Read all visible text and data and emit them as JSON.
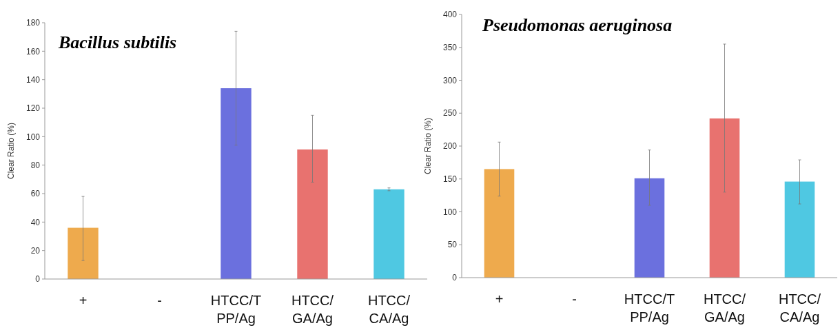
{
  "chart_data": [
    {
      "type": "bar",
      "title": "Bacillus subtilis",
      "ylabel": "Clear Ratio (%)",
      "categories": [
        "+",
        "-",
        "HTCC/T\nPP/Ag",
        "HTCC/\nGA/Ag",
        "HTCC/\nCA/Ag"
      ],
      "values": [
        36,
        null,
        134,
        91,
        63
      ],
      "colors": [
        "#eeaa4d",
        null,
        "#6b70de",
        "#e8726f",
        "#4fc8e2"
      ],
      "errors": [
        [
          13,
          58
        ],
        null,
        [
          94,
          174
        ],
        [
          68,
          115
        ],
        [
          62,
          64
        ]
      ],
      "ylim": [
        0,
        180
      ],
      "yticks": [
        0,
        20,
        40,
        60,
        80,
        100,
        120,
        140,
        160,
        180
      ],
      "grid": false
    },
    {
      "type": "bar",
      "title": "Pseudomonas aeruginosa",
      "ylabel": "Clear Ratio (%)",
      "categories": [
        "+",
        "-",
        "HTCC/T\nPP/Ag",
        "HTCC/\nGA/Ag",
        "HTCC/\nCA/Ag"
      ],
      "values": [
        165,
        null,
        151,
        242,
        146
      ],
      "colors": [
        "#eeaa4d",
        null,
        "#6b70de",
        "#e8726f",
        "#4fc8e2"
      ],
      "errors": [
        [
          124,
          206
        ],
        null,
        [
          110,
          194
        ],
        [
          130,
          355
        ],
        [
          112,
          179
        ]
      ],
      "ylim": [
        0,
        400
      ],
      "yticks": [
        0,
        50,
        100,
        150,
        200,
        250,
        300,
        350,
        400
      ],
      "grid": false
    }
  ]
}
